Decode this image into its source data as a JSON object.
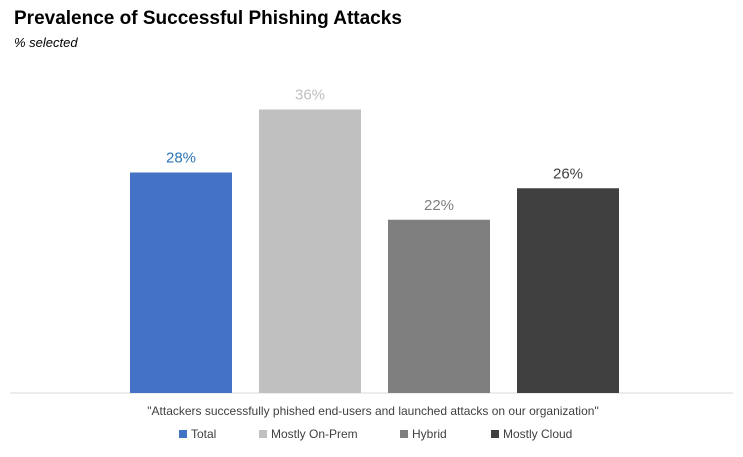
{
  "header": {
    "title": "Prevalence of Successful Phishing Attacks",
    "subtitle": "% selected"
  },
  "chart_data": {
    "type": "bar",
    "title": "Prevalence of Successful Phishing Attacks",
    "subtitle": "% selected",
    "xlabel": "\"Attackers successfully phished end-users and launched attacks on our organization\"",
    "ylabel": "",
    "ylim": [
      0,
      40
    ],
    "grid": false,
    "legend_position": "bottom",
    "series": [
      {
        "name": "Total",
        "value": 28,
        "label": "28%",
        "color": "#4472C4",
        "label_color": "#2E75B6"
      },
      {
        "name": "Mostly On-Prem",
        "value": 36,
        "label": "36%",
        "color": "#C0C0C0",
        "label_color": "#BFBFBF"
      },
      {
        "name": "Hybrid",
        "value": 22,
        "label": "22%",
        "color": "#7F7F7F",
        "label_color": "#7F7F7F"
      },
      {
        "name": "Mostly Cloud",
        "value": 26,
        "label": "26%",
        "color": "#404040",
        "label_color": "#404040"
      }
    ]
  }
}
